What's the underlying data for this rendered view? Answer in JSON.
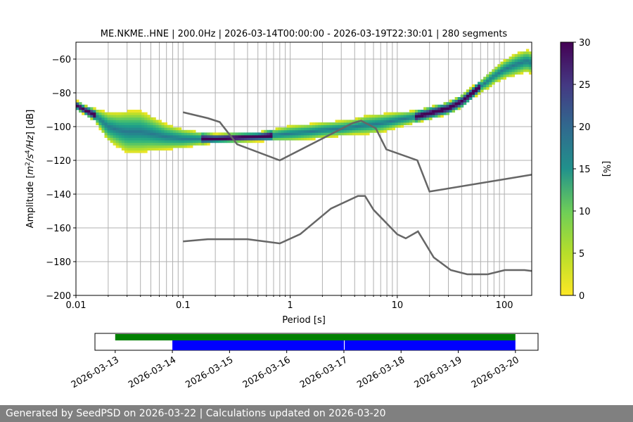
{
  "footer_text": "Generated by SeedPSD on 2026-03-22 | Calculations updated on 2026-03-20",
  "chart_data": [
    {
      "type": "heatmap",
      "title": "ME.NKME..HNE | 200.0Hz | 2026-03-14T00:00:00 - 2026-03-19T22:30:01 | 280 segments",
      "xlabel": "Period [s]",
      "ylabel": "Amplitude [m²/s⁴/Hz] [dB]",
      "x_scale": "log",
      "xlim": [
        0.01,
        180
      ],
      "ylim": [
        -200,
        -50
      ],
      "x_ticks": [
        0.01,
        0.1,
        1,
        10,
        100
      ],
      "x_tick_labels": [
        "0.01",
        "0.1",
        "1",
        "10",
        "100"
      ],
      "y_ticks": [
        -200,
        -180,
        -160,
        -140,
        -120,
        -100,
        -80,
        -60
      ],
      "y_tick_labels": [
        "−200",
        "−180",
        "−160",
        "−140",
        "−120",
        "−100",
        "−80",
        "−60"
      ],
      "grid": true,
      "colorbar": {
        "label": "[%]",
        "range": [
          0,
          30
        ],
        "ticks": [
          0,
          5,
          10,
          15,
          20,
          25,
          30
        ],
        "tick_labels": [
          "0",
          "5",
          "10",
          "15",
          "20",
          "25",
          "30"
        ],
        "colormap": "viridis_r"
      },
      "psd_band": {
        "period": [
          0.01,
          0.012,
          0.015,
          0.02,
          0.025,
          0.03,
          0.04,
          0.05,
          0.07,
          0.1,
          0.15,
          0.2,
          0.3,
          0.5,
          0.7,
          1,
          1.5,
          2,
          3,
          4,
          5,
          7,
          10,
          15,
          20,
          30,
          40,
          50,
          60,
          70,
          80,
          100,
          130,
          160,
          180
        ],
        "mode_db": [
          -87,
          -90,
          -93,
          -100,
          -102,
          -103,
          -103,
          -104,
          -106,
          -107,
          -107,
          -107,
          -106.5,
          -106,
          -105,
          -104,
          -103,
          -102,
          -101,
          -100,
          -99,
          -98,
          -96,
          -94,
          -92,
          -89,
          -85,
          -80,
          -76,
          -73,
          -70,
          -66,
          -63,
          -61,
          -62
        ],
        "spread_db": [
          2,
          2,
          3,
          8,
          10,
          12,
          12,
          10,
          7,
          5,
          3,
          2,
          2,
          2,
          3,
          4,
          4,
          4,
          4,
          4,
          5,
          5,
          4,
          3,
          3,
          3,
          3,
          3,
          3,
          4,
          4,
          5,
          6,
          6,
          6
        ]
      },
      "noise_models": [
        {
          "period": [
            0.1,
            0.17,
            0.22,
            0.32,
            0.8,
            3.8,
            4.6,
            6.3,
            7.9,
            15.4,
            20,
            180
          ],
          "db": [
            -91.5,
            -95,
            -97.3,
            -110.5,
            -120,
            -98,
            -96.5,
            -101,
            -113.5,
            -120,
            -138.5,
            -128.5
          ]
        },
        {
          "period": [
            0.1,
            0.17,
            0.4,
            0.8,
            1.24,
            2.4,
            4.3,
            5,
            6.0,
            10,
            12,
            15.6,
            21.9,
            31.6,
            45,
            70,
            101,
            154,
            180
          ],
          "db": [
            -168,
            -166.7,
            -166.7,
            -169.2,
            -163.7,
            -148.6,
            -141.1,
            -141.1,
            -149.3,
            -163.8,
            -166.2,
            -162.1,
            -177.5,
            -185,
            -187.5,
            -187.5,
            -185,
            -185,
            -185.5
          ]
        }
      ]
    },
    {
      "type": "timeline",
      "x_tick_labels": [
        "2026-03-13",
        "2026-03-14",
        "2026-03-15",
        "2026-03-16",
        "2026-03-17",
        "2026-03-18",
        "2026-03-19",
        "2026-03-20"
      ],
      "xlim": [
        "2026-03-12 15:30",
        "2026-03-20 09:30"
      ],
      "bars": [
        {
          "color": "#008000",
          "segments": [
            [
              "2026-03-13 00:00",
              "2026-03-20 00:00"
            ]
          ]
        },
        {
          "color": "#0000ff",
          "segments": [
            [
              "2026-03-14 00:00",
              "2026-03-17 00:00"
            ],
            [
              "2026-03-17 00:20",
              "2026-03-20 00:00"
            ]
          ]
        }
      ]
    }
  ]
}
